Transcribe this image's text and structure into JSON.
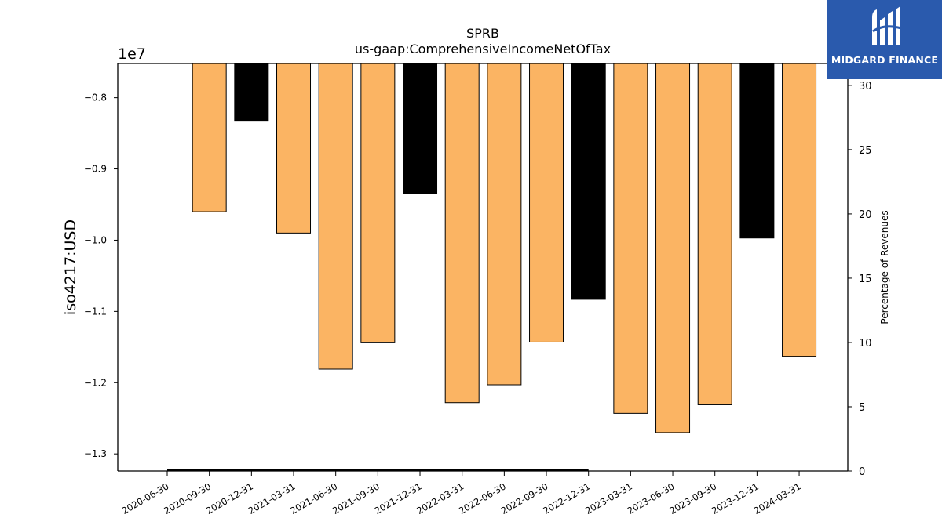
{
  "chart_data": {
    "type": "bar",
    "title": "SPRB",
    "subtitle": "us-gaap:ComprehensiveIncomeNetOfTax",
    "ylabel": "iso4217:USD",
    "y2label": "Percentage of Revenues",
    "offset_label": "1e7",
    "categories": [
      "2020-06-30",
      "2020-09-30",
      "2020-12-31",
      "2021-03-31",
      "2021-06-30",
      "2021-09-30",
      "2021-12-31",
      "2022-03-31",
      "2022-06-30",
      "2022-09-30",
      "2022-12-31",
      "2023-03-31",
      "2023-06-30",
      "2023-09-30",
      "2023-12-31",
      "2024-03-31"
    ],
    "values": [
      null,
      -9.6,
      -8.33,
      -9.9,
      -11.81,
      -11.44,
      -9.35,
      -12.28,
      -12.03,
      -11.43,
      -10.83,
      -12.43,
      -12.7,
      -12.31,
      -9.97,
      -11.63
    ],
    "bar_colors": [
      null,
      "#fbb463",
      "#000000",
      "#fbb463",
      "#fbb463",
      "#fbb463",
      "#000000",
      "#fbb463",
      "#fbb463",
      "#fbb463",
      "#000000",
      "#fbb463",
      "#fbb463",
      "#fbb463",
      "#000000",
      "#fbb463"
    ],
    "yticks": [
      "−0.8",
      "−0.9",
      "−1.0",
      "−1.1",
      "−1.2",
      "−1.3"
    ],
    "ytick_values": [
      -8.0,
      -9.0,
      -10.0,
      -11.0,
      -12.0,
      -13.0
    ],
    "ylim": [
      -13.24,
      -7.52
    ],
    "y2ticks": [
      "0",
      "5",
      "10",
      "15",
      "20",
      "25",
      "30"
    ],
    "y2tick_values": [
      0,
      5,
      10,
      15,
      20,
      25,
      30
    ],
    "y2lim": [
      0,
      31.7
    ],
    "secondary_line": {
      "from_index": 0,
      "to_index": 10,
      "value": 0
    }
  },
  "logo": {
    "text": "MIDGARD FINANCE"
  }
}
